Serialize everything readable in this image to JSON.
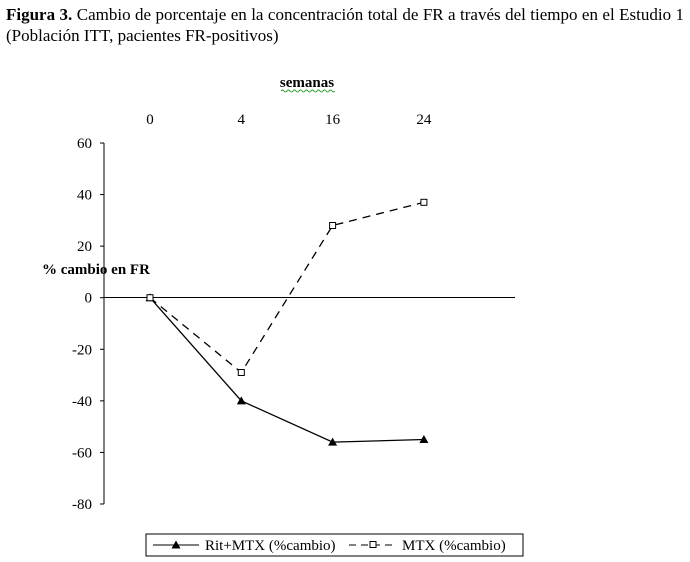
{
  "caption": {
    "label": "Figura 3.",
    "text": "Cambio de porcentaje en la concentración total de FR a través del tiempo en el Estudio 1 (Población ITT, pacientes FR-positivos)"
  },
  "chart_data": {
    "type": "line",
    "title": "",
    "xlabel": "semanas",
    "ylabel": "% cambio en FR",
    "categories": [
      "0",
      "4",
      "16",
      "24"
    ],
    "ylim": [
      -80,
      60
    ],
    "yticks": [
      "60",
      "40",
      "20",
      "0",
      "-20",
      "-40",
      "-60",
      "-80"
    ],
    "xaxis_position": "top",
    "grid": false,
    "legend_position": "bottom",
    "series": [
      {
        "name": "Rit+MTX (%cambio)",
        "values": [
          0,
          -40,
          -56,
          -55
        ],
        "marker": "filled-triangle",
        "line": "solid",
        "color": "#000000"
      },
      {
        "name": "MTX (%cambio)",
        "values": [
          0,
          -29,
          28,
          37
        ],
        "marker": "open-square",
        "line": "dashed",
        "color": "#000000"
      }
    ]
  }
}
